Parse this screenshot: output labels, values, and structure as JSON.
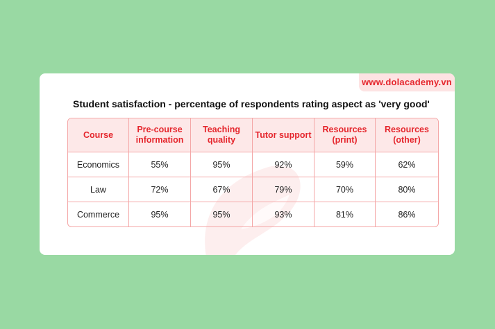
{
  "watermark": "www.dolacademy.vn",
  "chart_data": {
    "type": "table",
    "title": "Student satisfaction - percentage of respondents rating aspect as 'very good'",
    "columns": [
      "Course",
      "Pre-course information",
      "Teaching quality",
      "Tutor support",
      "Resources (print)",
      "Resources (other)"
    ],
    "rows": [
      {
        "course": "Economics",
        "values": [
          "55%",
          "95%",
          "92%",
          "59%",
          "62%"
        ]
      },
      {
        "course": "Law",
        "values": [
          "72%",
          "67%",
          "79%",
          "70%",
          "80%"
        ]
      },
      {
        "course": "Commerce",
        "values": [
          "95%",
          "95%",
          "93%",
          "81%",
          "86%"
        ]
      }
    ]
  },
  "colors": {
    "background": "#99d9a3",
    "accent": "#e5262d",
    "header_fill": "#fde8e8",
    "border": "#f4a6a6"
  }
}
